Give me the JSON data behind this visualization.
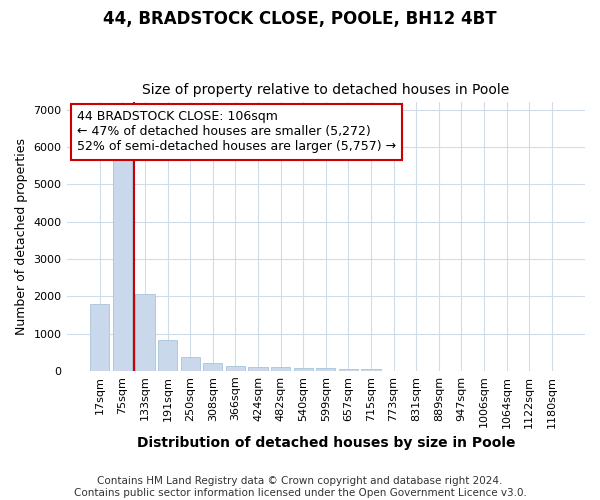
{
  "title1": "44, BRADSTOCK CLOSE, POOLE, BH12 4BT",
  "title2": "Size of property relative to detached houses in Poole",
  "xlabel": "Distribution of detached houses by size in Poole",
  "ylabel": "Number of detached properties",
  "categories": [
    "17sqm",
    "75sqm",
    "133sqm",
    "191sqm",
    "250sqm",
    "308sqm",
    "366sqm",
    "424sqm",
    "482sqm",
    "540sqm",
    "599sqm",
    "657sqm",
    "715sqm",
    "773sqm",
    "831sqm",
    "889sqm",
    "947sqm",
    "1006sqm",
    "1064sqm",
    "1122sqm",
    "1180sqm"
  ],
  "values": [
    1780,
    5770,
    2050,
    820,
    360,
    210,
    120,
    95,
    90,
    75,
    65,
    60,
    55,
    0,
    0,
    0,
    0,
    0,
    0,
    0,
    0
  ],
  "bar_color": "#c9d9eb",
  "bar_edge_color": "#a8c4d8",
  "vline_color": "#cc0000",
  "annotation_text": "44 BRADSTOCK CLOSE: 106sqm\n← 47% of detached houses are smaller (5,272)\n52% of semi-detached houses are larger (5,757) →",
  "annotation_box_color": "white",
  "annotation_box_edge_color": "#cc0000",
  "ylim": [
    0,
    7200
  ],
  "yticks": [
    0,
    1000,
    2000,
    3000,
    4000,
    5000,
    6000,
    7000
  ],
  "footer": "Contains HM Land Registry data © Crown copyright and database right 2024.\nContains public sector information licensed under the Open Government Licence v3.0.",
  "bg_color": "#ffffff",
  "plot_bg_color": "#ffffff",
  "grid_color": "#d0dce8",
  "title1_fontsize": 12,
  "title2_fontsize": 10,
  "xlabel_fontsize": 10,
  "ylabel_fontsize": 9,
  "tick_fontsize": 8,
  "annotation_fontsize": 9,
  "footer_fontsize": 7.5
}
